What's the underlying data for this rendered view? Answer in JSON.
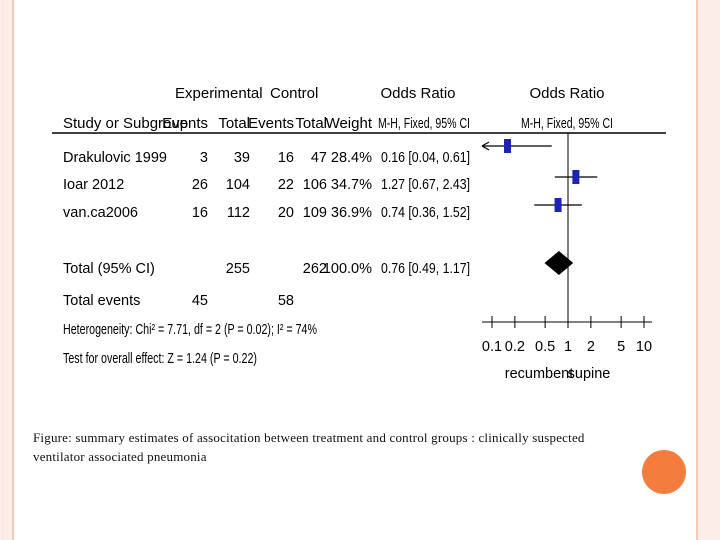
{
  "chart_data": {
    "type": "forest",
    "headers": {
      "group_experimental": "Experimental",
      "group_control": "Control",
      "group_or_left": "Odds Ratio",
      "group_or_right": "Odds Ratio",
      "study": "Study or Subgroup",
      "exp_events": "Events",
      "exp_total": "Total",
      "ctl_events": "Events",
      "ctl_total": "Total",
      "weight": "Weight",
      "or_method_left": "M-H, Fixed, 95% CI",
      "or_method_right": "M-H, Fixed, 95% CI"
    },
    "studies": [
      {
        "name": "Drakulovic 1999",
        "exp_events": "3",
        "exp_total": "39",
        "ctl_events": "16",
        "ctl_total": "47",
        "weight": "28.4%",
        "ci_text": "0.16 [0.04, 0.61]",
        "or": 0.16,
        "lo": 0.04,
        "hi": 0.61
      },
      {
        "name": "Ioar 2012",
        "exp_events": "26",
        "exp_total": "104",
        "ctl_events": "22",
        "ctl_total": "106",
        "weight": "34.7%",
        "ci_text": "1.27 [0.67, 2.43]",
        "or": 1.27,
        "lo": 0.67,
        "hi": 2.43
      },
      {
        "name": "van.ca2006",
        "exp_events": "16",
        "exp_total": "112",
        "ctl_events": "20",
        "ctl_total": "109",
        "weight": "36.9%",
        "ci_text": "0.74 [0.36, 1.52]",
        "or": 0.74,
        "lo": 0.36,
        "hi": 1.52
      }
    ],
    "total": {
      "label": "Total (95% CI)",
      "exp_total": "255",
      "ctl_total": "262",
      "weight": "100.0%",
      "ci_text": "0.76 [0.49, 1.17]",
      "or": 0.76,
      "lo": 0.49,
      "hi": 1.17
    },
    "total_events": {
      "label": "Total events",
      "exp": "45",
      "ctl": "58"
    },
    "heterogeneity": "Heterogeneity: Chi² = 7.71, df = 2 (P = 0.02); I² = 74%",
    "overall_effect": "Test for overall effect: Z = 1.24 (P = 0.22)",
    "axis": {
      "scale": "log",
      "ticks": [
        0.1,
        0.2,
        0.5,
        1,
        2,
        5,
        10
      ],
      "tick_labels": [
        "0.1",
        "0.2",
        "0.5",
        "1",
        "2",
        "5",
        "10"
      ],
      "label_left": "recumbent",
      "label_right": "supine"
    },
    "colors": {
      "square": "#1f23b5",
      "diamond": "#000000"
    }
  },
  "caption": "Figure: summary estimates of associtation between treatment and control groups : clinically suspected  ventilator associated pneumonia"
}
